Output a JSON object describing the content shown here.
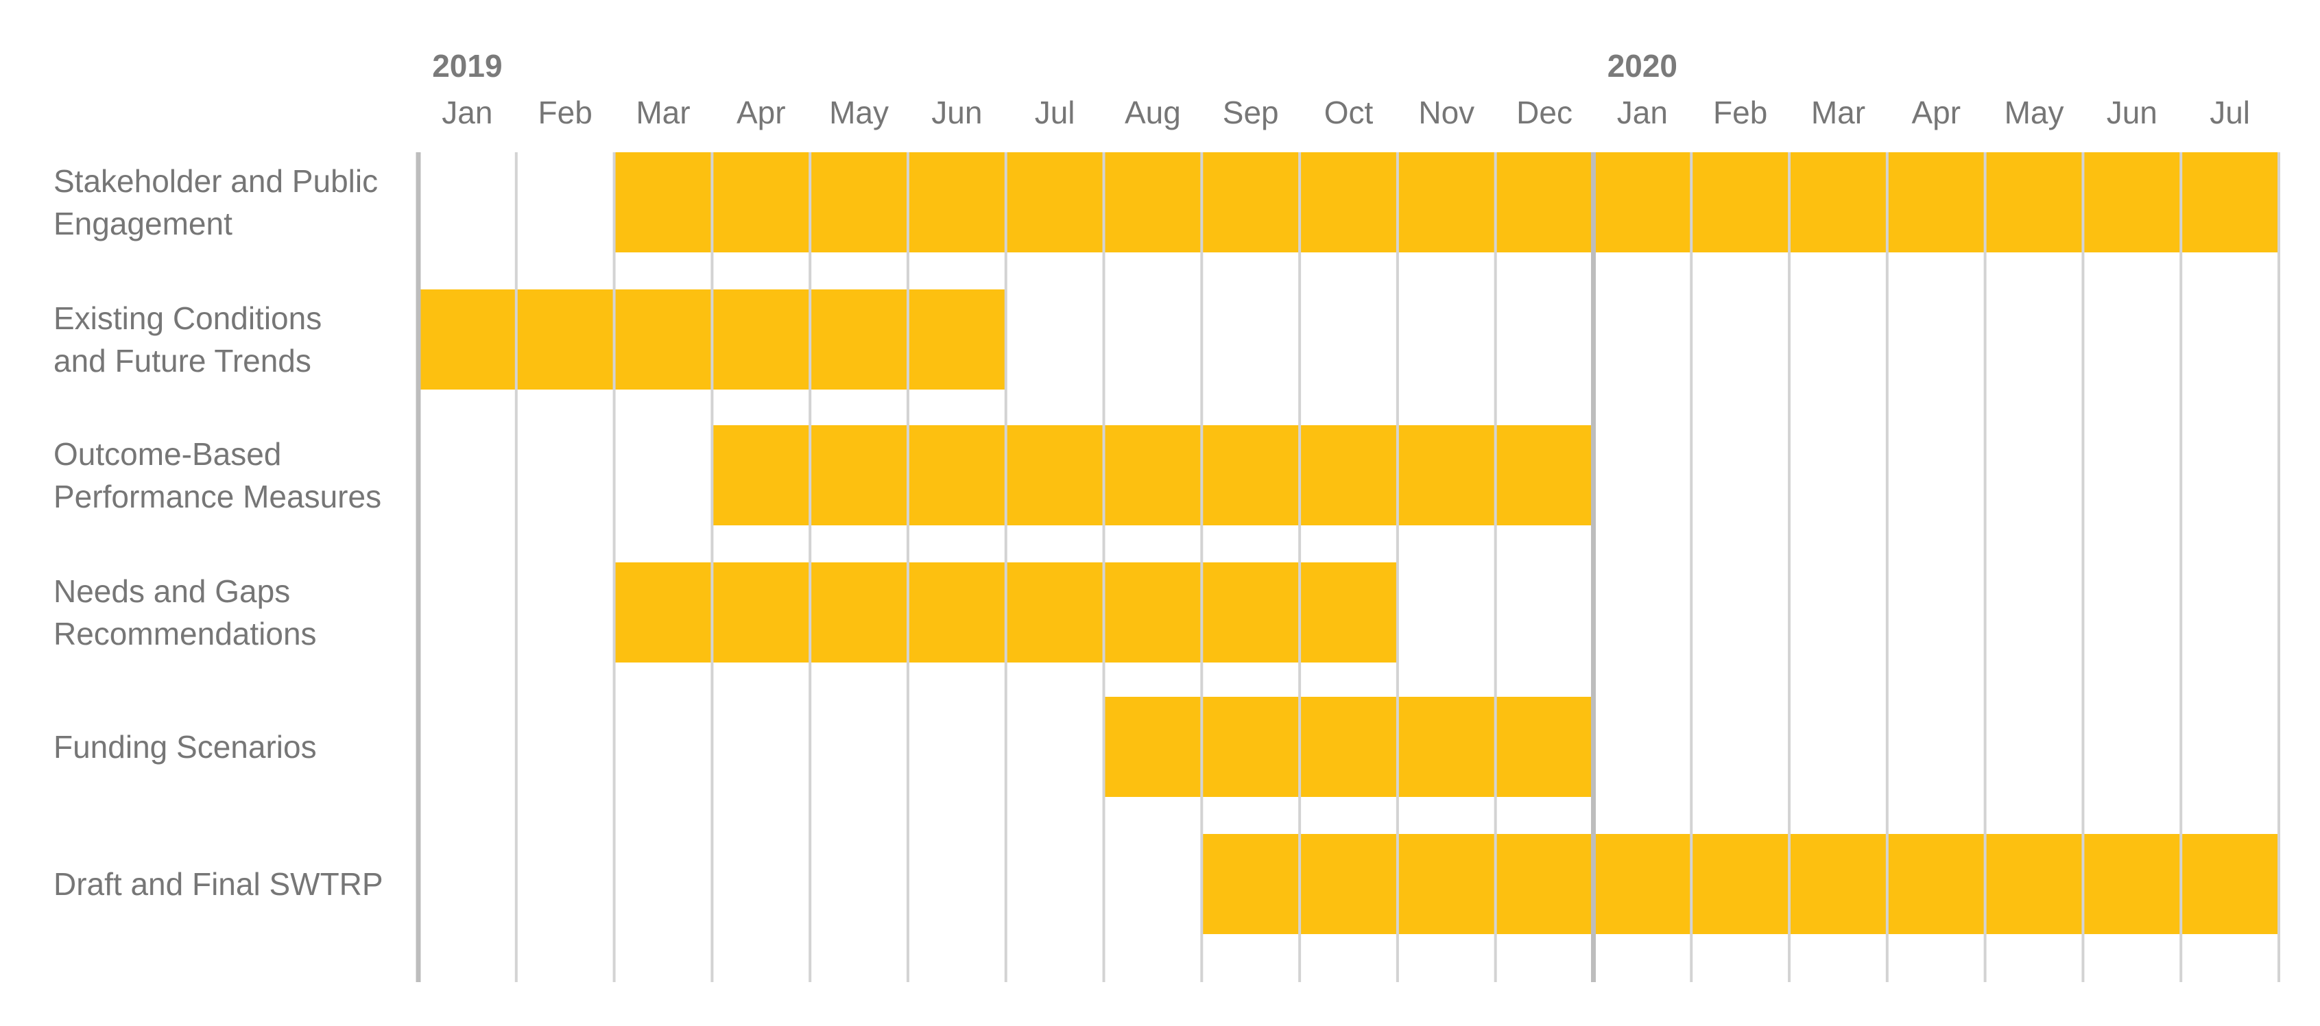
{
  "colors": {
    "bar": "#FDC010",
    "grid": "#D3D3D3",
    "grid_major": "#BDBDBD",
    "text": "#767676"
  },
  "chart_data": {
    "type": "gantt",
    "title": "",
    "years": [
      {
        "label": "2019",
        "start_index": 0
      },
      {
        "label": "2020",
        "start_index": 12
      }
    ],
    "months": [
      "Jan",
      "Feb",
      "Mar",
      "Apr",
      "May",
      "Jun",
      "Jul",
      "Aug",
      "Sep",
      "Oct",
      "Nov",
      "Dec",
      "Jan",
      "Feb",
      "Mar",
      "Apr",
      "May",
      "Jun",
      "Jul"
    ],
    "tasks": [
      {
        "name": "Stakeholder and Public Engagement",
        "label_lines": [
          "Stakeholder and Public",
          "Engagement"
        ],
        "start": "2019-03",
        "end": "2020-07",
        "start_index": 2,
        "end_index": 18
      },
      {
        "name": "Existing Conditions and Future Trends",
        "label_lines": [
          "Existing Conditions",
          "and Future Trends"
        ],
        "start": "2019-01",
        "end": "2019-06",
        "start_index": 0,
        "end_index": 5
      },
      {
        "name": "Outcome-Based Performance Measures",
        "label_lines": [
          "Outcome-Based",
          "Performance Measures"
        ],
        "start": "2019-04",
        "end": "2019-12",
        "start_index": 3,
        "end_index": 11
      },
      {
        "name": "Needs and Gaps Recommendations",
        "label_lines": [
          "Needs and Gaps",
          "Recommendations"
        ],
        "start": "2019-03",
        "end": "2019-10",
        "start_index": 2,
        "end_index": 9
      },
      {
        "name": "Funding Scenarios",
        "label_lines": [
          "Funding Scenarios"
        ],
        "start": "2019-08",
        "end": "2019-12",
        "start_index": 7,
        "end_index": 11
      },
      {
        "name": "Draft and Final SWTRP",
        "label_lines": [
          "Draft and Final SWTRP"
        ],
        "start": "2019-09",
        "end": "2020-07",
        "start_index": 8,
        "end_index": 18
      }
    ]
  }
}
